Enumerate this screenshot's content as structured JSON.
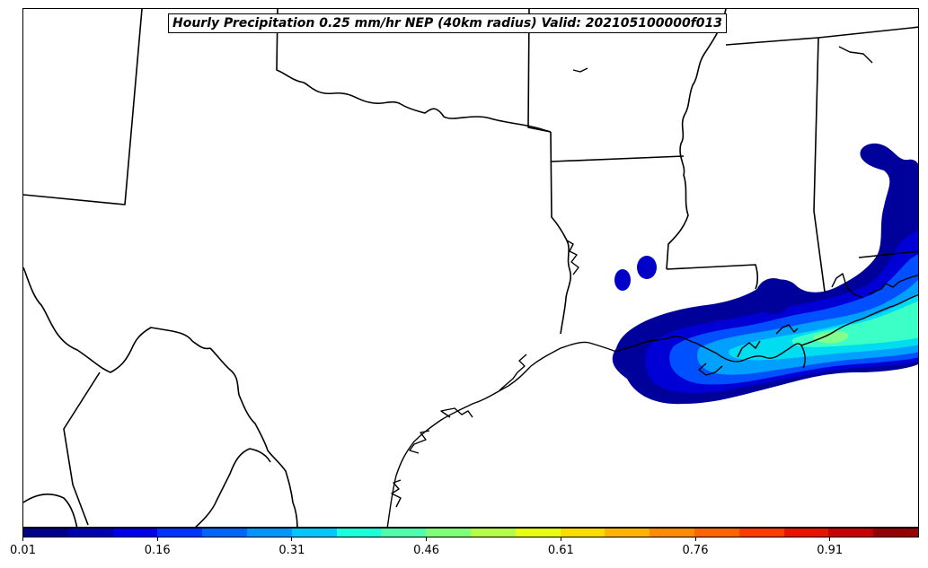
{
  "map": {
    "title": "Hourly Precipitation 0.25 mm/hr NEP (40km radius) Valid: 202105100000f013",
    "field": "Hourly Precipitation 0.25 mm/hr NEP",
    "region": "Texas / Louisiana / Gulf Coast"
  },
  "colorbar": {
    "colors": [
      "#00008c",
      "#0000b4",
      "#0000e6",
      "#0032ff",
      "#0064ff",
      "#0096ff",
      "#00c8ff",
      "#1effdc",
      "#50ffaa",
      "#82ff78",
      "#b4ff46",
      "#e6ff14",
      "#ffdc00",
      "#ffb400",
      "#ff8c00",
      "#ff6400",
      "#ff3c00",
      "#e61400",
      "#c80000",
      "#960000"
    ],
    "tick_labels": [
      "0.01",
      "0.16",
      "0.31",
      "0.46",
      "0.61",
      "0.76",
      "0.91"
    ]
  }
}
